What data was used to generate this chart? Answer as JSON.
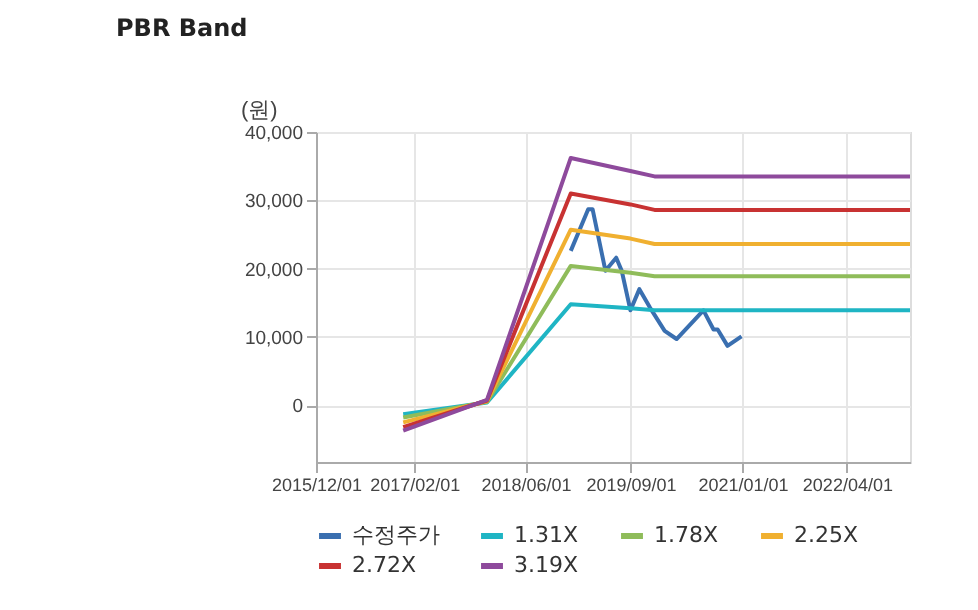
{
  "chart_data": {
    "type": "line",
    "title": "PBR Band",
    "ylabel": "(원)",
    "xlim": [
      "2015-12-01",
      "2023-01-01"
    ],
    "ylim": [
      -8300,
      40000
    ],
    "xticks": [
      {
        "value": "2015-12-01",
        "label": "2015/12/01"
      },
      {
        "value": "2017-02-01",
        "label": "2017/02/01"
      },
      {
        "value": "2018-06-01",
        "label": "2018/06/01"
      },
      {
        "value": "2019-09-01",
        "label": "2019/09/01"
      },
      {
        "value": "2021-01-01",
        "label": "2021/01/01"
      },
      {
        "value": "2022-04-01",
        "label": "2022/04/01"
      }
    ],
    "yticks": [
      0,
      {
        "value": 10000,
        "label": "10,000"
      },
      {
        "value": 20000,
        "label": "20,000"
      },
      {
        "value": 30000,
        "label": "30,000"
      },
      {
        "value": 40000,
        "label": "40,000"
      }
    ],
    "grid": true,
    "legend": "bottom",
    "series": [
      {
        "name": "수정주가",
        "color": "#3a6fb0",
        "x": [
          "2018-12-15",
          "2019-03-01",
          "2019-03-20",
          "2019-05-15",
          "2019-07-01",
          "2019-07-25",
          "2019-09-01",
          "2019-10-10",
          "2019-11-25",
          "2020-01-28",
          "2020-03-20",
          "2020-07-15",
          "2020-08-28",
          "2020-09-15",
          "2020-10-28",
          "2020-12-28"
        ],
        "values": [
          22600,
          28700,
          28700,
          19700,
          21600,
          19700,
          13900,
          17000,
          14300,
          10900,
          9700,
          13900,
          11100,
          11100,
          8700,
          10100
        ]
      },
      {
        "name": "1.31X",
        "color": "#1fb5c4",
        "x": [
          "2016-12-15",
          "2017-12-15",
          "2018-12-15",
          "2019-09-01",
          "2019-12-15",
          "2023-01-01"
        ],
        "values": [
          -1300,
          400,
          14800,
          14200,
          13900,
          13900
        ]
      },
      {
        "name": "1.78X",
        "color": "#8fbc5a",
        "x": [
          "2016-12-15",
          "2017-12-15",
          "2018-12-15",
          "2019-09-01",
          "2019-12-15",
          "2023-01-01"
        ],
        "values": [
          -1800,
          500,
          20400,
          19400,
          18900,
          18900
        ]
      },
      {
        "name": "2.25X",
        "color": "#f0b030",
        "x": [
          "2016-12-15",
          "2017-12-15",
          "2018-12-15",
          "2019-09-01",
          "2019-12-15",
          "2023-01-01"
        ],
        "values": [
          -2500,
          600,
          25700,
          24400,
          23600,
          23600
        ]
      },
      {
        "name": "2.72X",
        "color": "#c83232",
        "x": [
          "2016-12-15",
          "2017-12-15",
          "2018-12-15",
          "2019-09-01",
          "2019-12-15",
          "2023-01-01"
        ],
        "values": [
          -3200,
          700,
          31000,
          29400,
          28600,
          28600
        ]
      },
      {
        "name": "3.19X",
        "color": "#8e4a9c",
        "x": [
          "2016-12-15",
          "2017-12-15",
          "2018-12-15",
          "2019-09-01",
          "2019-12-15",
          "2023-01-01"
        ],
        "values": [
          -3700,
          800,
          36200,
          34300,
          33500,
          33500
        ]
      }
    ]
  }
}
